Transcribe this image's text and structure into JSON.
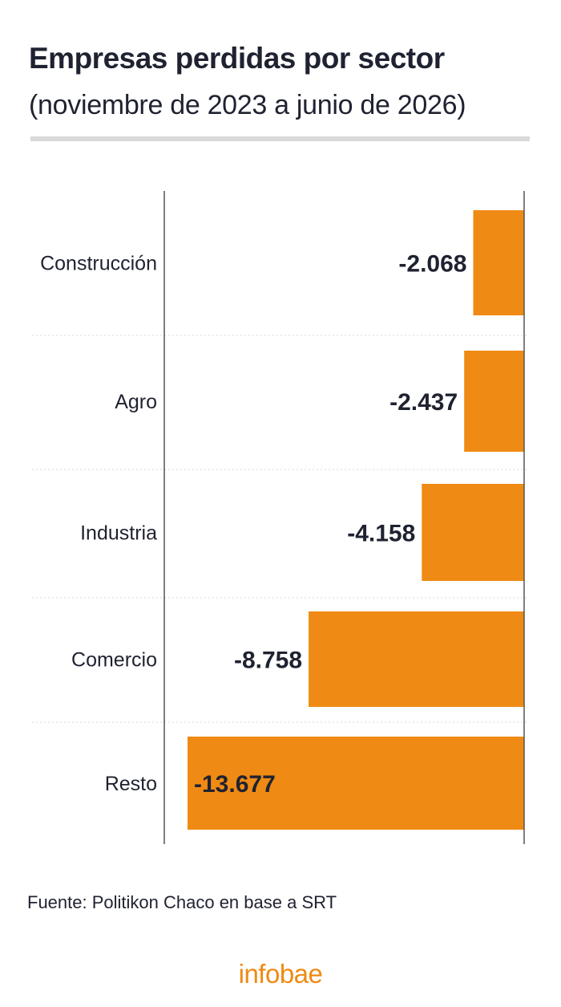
{
  "header": {
    "title": "Empresas perdidas por sector",
    "subtitle": "(noviembre de 2023 a junio de 2026)"
  },
  "chart_data": {
    "type": "bar",
    "orientation": "horizontal",
    "categories": [
      "Construcción",
      "Agro",
      "Industria",
      "Comercio",
      "Resto"
    ],
    "values": [
      -2068,
      -2437,
      -4158,
      -8758,
      -13677
    ],
    "value_labels": [
      "-2.068",
      "-2.437",
      "-4.158",
      "-8.758",
      "-13.677"
    ],
    "xlim": [
      -13677,
      0
    ],
    "grid": true,
    "bar_color": "#ef8a14",
    "legend": "none"
  },
  "footer": {
    "source": "Fuente: Politikon Chaco en base a SRT",
    "logo": "infobae"
  },
  "colors": {
    "accent": "#ef8a14",
    "text": "#1f2230",
    "rule": "#d9d9d9"
  }
}
